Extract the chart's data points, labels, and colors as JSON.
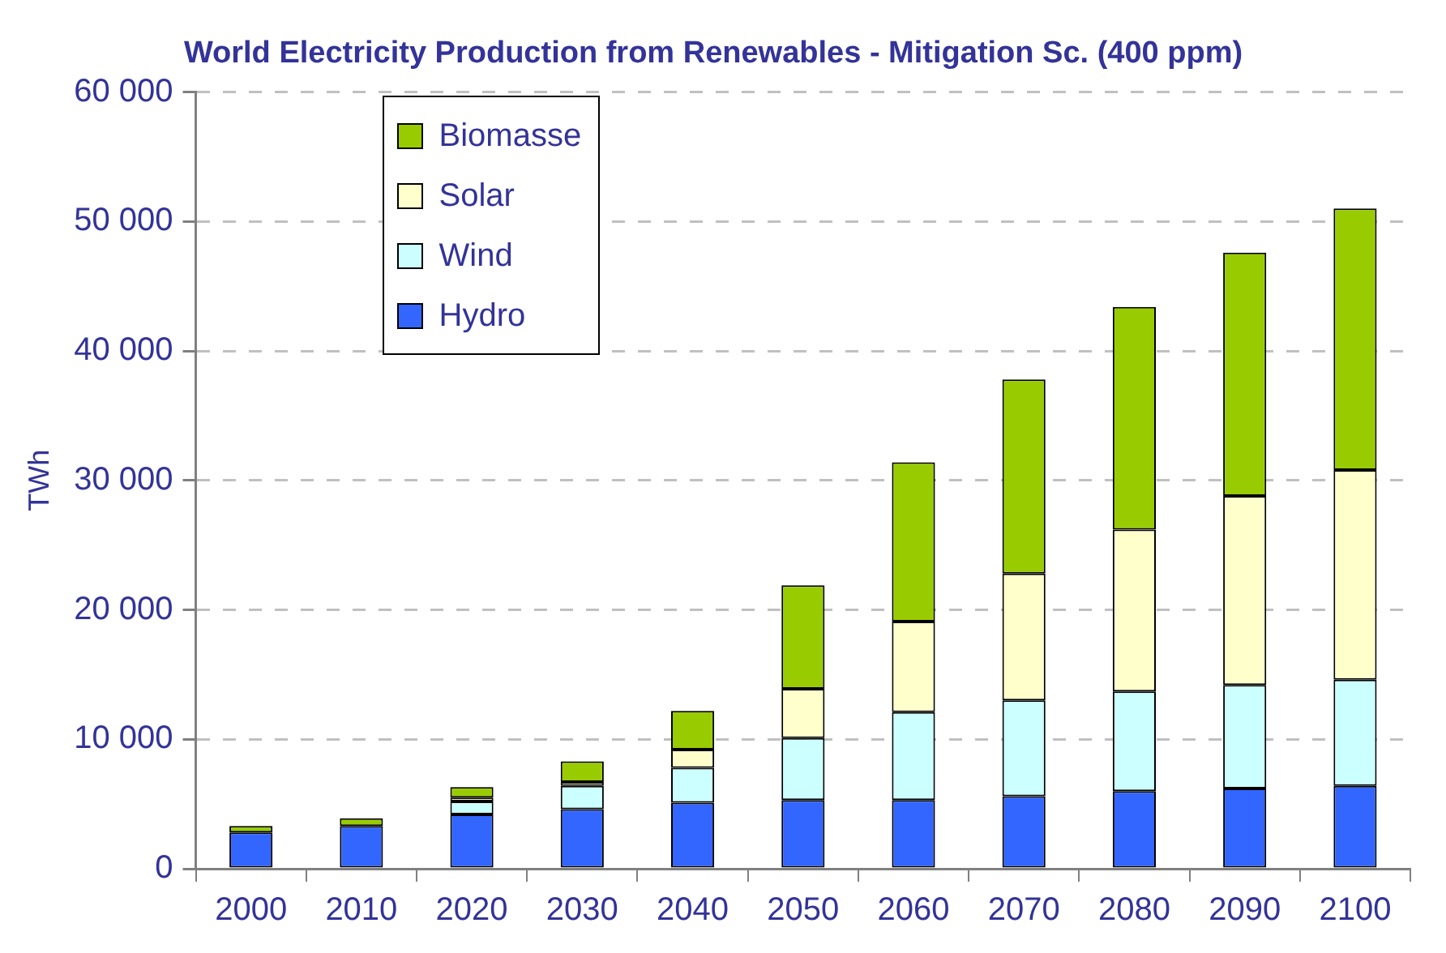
{
  "chart_data": {
    "type": "bar",
    "title": "World Electricity Production from Renewables - Mitigation Sc. (400 ppm)",
    "ylabel": "TWh",
    "stacked": true,
    "categories": [
      "2000",
      "2010",
      "2020",
      "2030",
      "2040",
      "2050",
      "2060",
      "2070",
      "2080",
      "2090",
      "2100"
    ],
    "series": [
      {
        "name": "Hydro",
        "color": "#3366ff",
        "values": [
          2800,
          3300,
          4200,
          4600,
          5100,
          5300,
          5300,
          5600,
          6000,
          6200,
          6400
        ]
      },
      {
        "name": "Wind",
        "color": "#ccffff",
        "values": [
          null,
          null,
          1000,
          1800,
          2700,
          4800,
          6800,
          7400,
          7700,
          8000,
          8200
        ]
      },
      {
        "name": "Solar",
        "color": "#ffffcc",
        "values": [
          null,
          null,
          300,
          300,
          1400,
          3800,
          7000,
          9800,
          12500,
          14600,
          16200
        ]
      },
      {
        "name": "Biomasse",
        "color": "#99cc00",
        "values": [
          500,
          600,
          800,
          1600,
          3000,
          8000,
          12300,
          15000,
          17200,
          18800,
          20200
        ]
      }
    ],
    "ylim": [
      0,
      60000
    ],
    "yticks": [
      {
        "value": 0,
        "label": "0"
      },
      {
        "value": 10000,
        "label": "10 000"
      },
      {
        "value": 20000,
        "label": "20 000"
      },
      {
        "value": 30000,
        "label": "30 000"
      },
      {
        "value": 40000,
        "label": "40 000"
      },
      {
        "value": 50000,
        "label": "50 000"
      },
      {
        "value": 60000,
        "label": "60 000"
      }
    ],
    "grid": "y",
    "legend": "top left"
  }
}
